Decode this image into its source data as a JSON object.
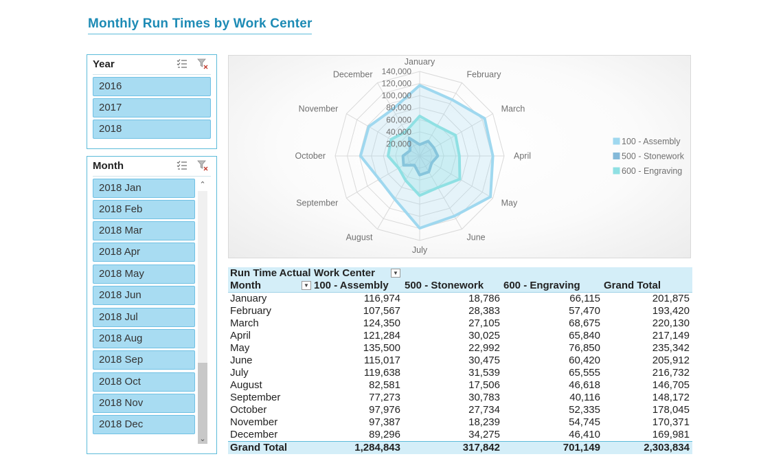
{
  "title": "Monthly Run Times by Work Center",
  "year_slicer": {
    "header": "Year",
    "items": [
      "2016",
      "2017",
      "2018"
    ]
  },
  "month_slicer": {
    "header": "Month",
    "items": [
      "2018 Jan",
      "2018 Feb",
      "2018 Mar",
      "2018 Apr",
      "2018 May",
      "2018 Jun",
      "2018 Jul",
      "2018 Aug",
      "2018 Sep",
      "2018 Oct",
      "2018 Nov",
      "2018 Dec"
    ]
  },
  "pivot": {
    "corner_label": "Run Time Actual",
    "column_field": "Work Center",
    "row_field": "Month",
    "columns": [
      "100 - Assembly",
      "500 - Stonework",
      "600 - Engraving",
      "Grand Total"
    ],
    "rows": [
      {
        "month": "January",
        "values": [
          "116,974",
          "18,786",
          "66,115",
          "201,875"
        ]
      },
      {
        "month": "February",
        "values": [
          "107,567",
          "28,383",
          "57,470",
          "193,420"
        ]
      },
      {
        "month": "March",
        "values": [
          "124,350",
          "27,105",
          "68,675",
          "220,130"
        ]
      },
      {
        "month": "April",
        "values": [
          "121,284",
          "30,025",
          "65,840",
          "217,149"
        ]
      },
      {
        "month": "May",
        "values": [
          "135,500",
          "22,992",
          "76,850",
          "235,342"
        ]
      },
      {
        "month": "June",
        "values": [
          "115,017",
          "30,475",
          "60,420",
          "205,912"
        ]
      },
      {
        "month": "July",
        "values": [
          "119,638",
          "31,539",
          "65,555",
          "216,732"
        ]
      },
      {
        "month": "August",
        "values": [
          "82,581",
          "17,506",
          "46,618",
          "146,705"
        ]
      },
      {
        "month": "September",
        "values": [
          "77,273",
          "30,783",
          "40,116",
          "148,172"
        ]
      },
      {
        "month": "October",
        "values": [
          "97,976",
          "27,734",
          "52,335",
          "178,045"
        ]
      },
      {
        "month": "November",
        "values": [
          "97,387",
          "18,239",
          "54,745",
          "170,371"
        ]
      },
      {
        "month": "December",
        "values": [
          "89,296",
          "34,275",
          "46,410",
          "169,981"
        ]
      }
    ],
    "grand_total": {
      "label": "Grand Total",
      "values": [
        "1,284,843",
        "317,842",
        "701,149",
        "2,303,834"
      ]
    }
  },
  "chart_data": {
    "type": "radar",
    "categories": [
      "January",
      "February",
      "March",
      "April",
      "May",
      "June",
      "July",
      "August",
      "September",
      "October",
      "November",
      "December"
    ],
    "tick_labels": [
      "20,000",
      "40,000",
      "60,000",
      "80,000",
      "100,000",
      "120,000",
      "140,000"
    ],
    "rmax": 140000,
    "legend_position": "right",
    "series": [
      {
        "name": "100 - Assembly",
        "color": "#9fd8ef",
        "values": [
          116974,
          107567,
          124350,
          121284,
          135500,
          115017,
          119638,
          82581,
          77273,
          97976,
          97387,
          89296
        ]
      },
      {
        "name": "500 - Stonework",
        "color": "#84b9d9",
        "values": [
          18786,
          28383,
          27105,
          30025,
          22992,
          30475,
          31539,
          17506,
          30783,
          27734,
          18239,
          34275
        ]
      },
      {
        "name": "600 - Engraving",
        "color": "#8fe0e3",
        "values": [
          66115,
          57470,
          68675,
          65840,
          76850,
          60420,
          65555,
          46618,
          40116,
          52335,
          54745,
          46410
        ]
      }
    ]
  },
  "colors": {
    "accent": "#1d8bb5",
    "slicer_border": "#5bbbd9",
    "slicer_item": "#a8dcf2",
    "pivot_header": "#d4eef8"
  },
  "icons": {
    "multi_select": "multi-select-icon",
    "clear_filter": "clear-filter-icon"
  }
}
